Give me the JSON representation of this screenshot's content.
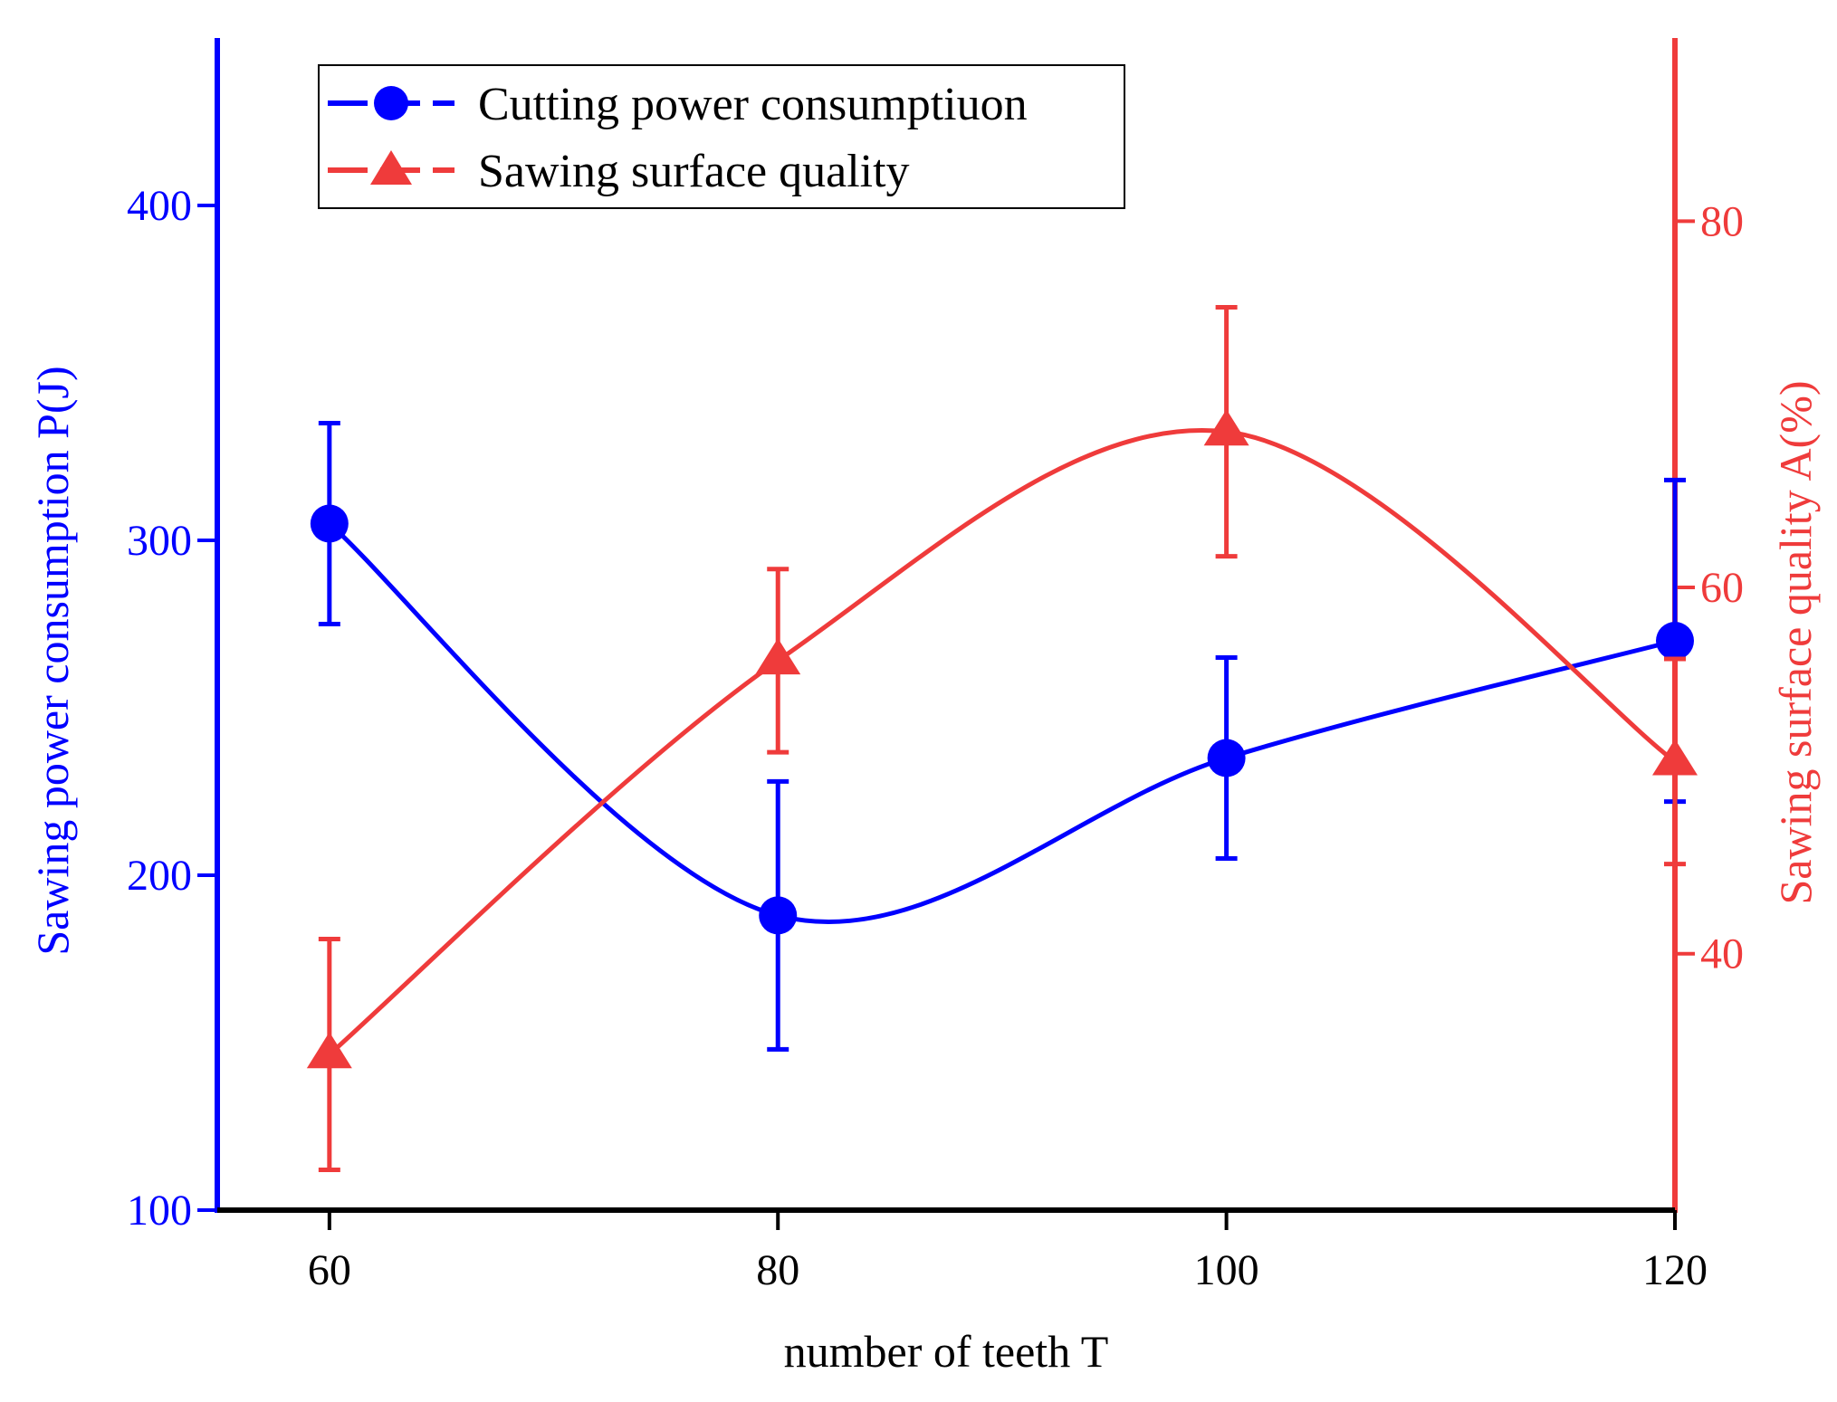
{
  "chart_data": {
    "type": "line",
    "title": "",
    "xlabel": "number of teeth T",
    "ylabel_left": "Sawing power consumption P(J)",
    "ylabel_right": "Sawing surface quality A(%)",
    "x": [
      60,
      80,
      100,
      120
    ],
    "xlim": [
      55,
      120
    ],
    "xticks": [
      60,
      80,
      100,
      120
    ],
    "ylim_left": [
      100,
      450
    ],
    "yticks_left": [
      100,
      200,
      300,
      400
    ],
    "ylim_right": [
      26,
      90
    ],
    "yticks_right": [
      40,
      60,
      80
    ],
    "legend_position": "top-left",
    "grid": false,
    "series": [
      {
        "name": "Cutting power consumptiuon",
        "axis": "left",
        "marker": "circle",
        "color": "#0000ff",
        "values": [
          305,
          188,
          235,
          270
        ],
        "error": [
          30,
          40,
          30,
          48
        ]
      },
      {
        "name": "Sawing surface quality",
        "axis": "right",
        "marker": "triangle",
        "color": "#ef3b3b",
        "values": [
          34.5,
          56,
          68.5,
          50.5
        ],
        "error": [
          6.3,
          5,
          6.8,
          5.6
        ]
      }
    ]
  }
}
